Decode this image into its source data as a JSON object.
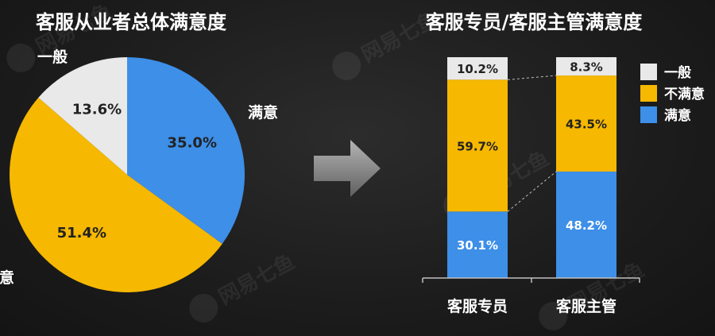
{
  "chart_data": [
    {
      "type": "pie",
      "title": "客服从业者总体满意度",
      "slices": [
        {
          "label": "满意",
          "value": 35.0,
          "value_label": "35.0%",
          "color": "#3d8fe8"
        },
        {
          "label": "不满意",
          "value": 51.4,
          "value_label": "51.4%",
          "color": "#f6b800"
        },
        {
          "label": "一般",
          "value": 13.6,
          "value_label": "13.6%",
          "color": "#e9e9e9"
        }
      ]
    },
    {
      "type": "bar",
      "stacked": true,
      "percent_stacked": true,
      "title": "客服专员/客服主管满意度",
      "categories": [
        "客服专员",
        "客服主管"
      ],
      "series": [
        {
          "name": "满意",
          "values": [
            30.1,
            48.2
          ],
          "value_labels": [
            "30.1%",
            "48.2%"
          ],
          "color": "#3d8fe8"
        },
        {
          "name": "不满意",
          "values": [
            59.7,
            43.5
          ],
          "value_labels": [
            "59.7%",
            "43.5%"
          ],
          "color": "#f6b800"
        },
        {
          "name": "一般",
          "values": [
            10.2,
            8.3
          ],
          "value_labels": [
            "10.2%",
            "8.3%"
          ],
          "color": "#e9e9e9"
        }
      ],
      "legend": [
        "一般",
        "不满意",
        "满意"
      ],
      "legend_position": "top-right",
      "ylim": [
        0,
        100
      ]
    }
  ],
  "watermark": "网易七鱼",
  "colors": {
    "background": "#1c1c1c",
    "text": "#ffffff",
    "arrow": "#8a8a8a"
  }
}
